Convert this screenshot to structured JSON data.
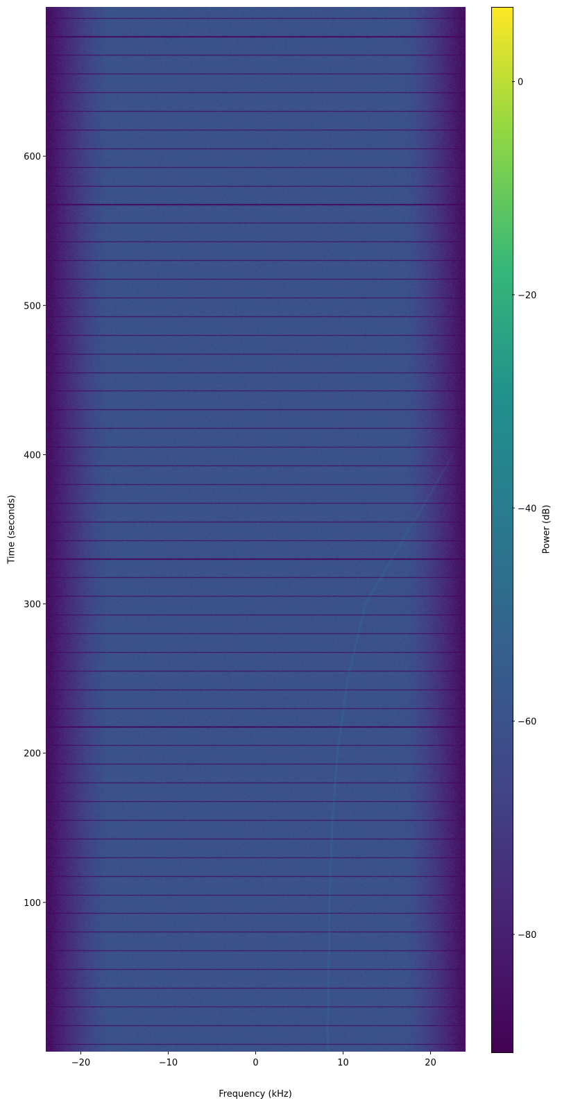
{
  "chart_data": {
    "type": "heatmap",
    "xlabel": "Frequency (kHz)",
    "ylabel": "Time (seconds)",
    "colorbar_label": "Power (dB)",
    "colormap": "viridis",
    "xlim": [
      -24,
      24
    ],
    "ylim": [
      0,
      700
    ],
    "clim": [
      -91,
      7
    ],
    "xticks": [
      -20,
      -10,
      0,
      10,
      20
    ],
    "xtick_labels": [
      "−20",
      "−10",
      "0",
      "10",
      "20"
    ],
    "yticks": [
      100,
      200,
      300,
      400,
      500,
      600
    ],
    "ytick_labels": [
      "100",
      "200",
      "300",
      "400",
      "500",
      "600"
    ],
    "cticks": [
      0,
      -20,
      -40,
      -60,
      -80
    ],
    "ctick_labels": [
      "0",
      "−20",
      "−40",
      "−60",
      "−80"
    ],
    "background_power_db": -60,
    "edge_power_db": -85,
    "gap_stripe_period_s": 12.5,
    "gap_power_db": -88,
    "signal_track": {
      "time_s": [
        0,
        50,
        100,
        150,
        200,
        250,
        300,
        350,
        400
      ],
      "freq_khz": [
        8.2,
        8.3,
        8.4,
        8.7,
        9.3,
        10.5,
        12.5,
        17.5,
        22.5
      ]
    }
  }
}
